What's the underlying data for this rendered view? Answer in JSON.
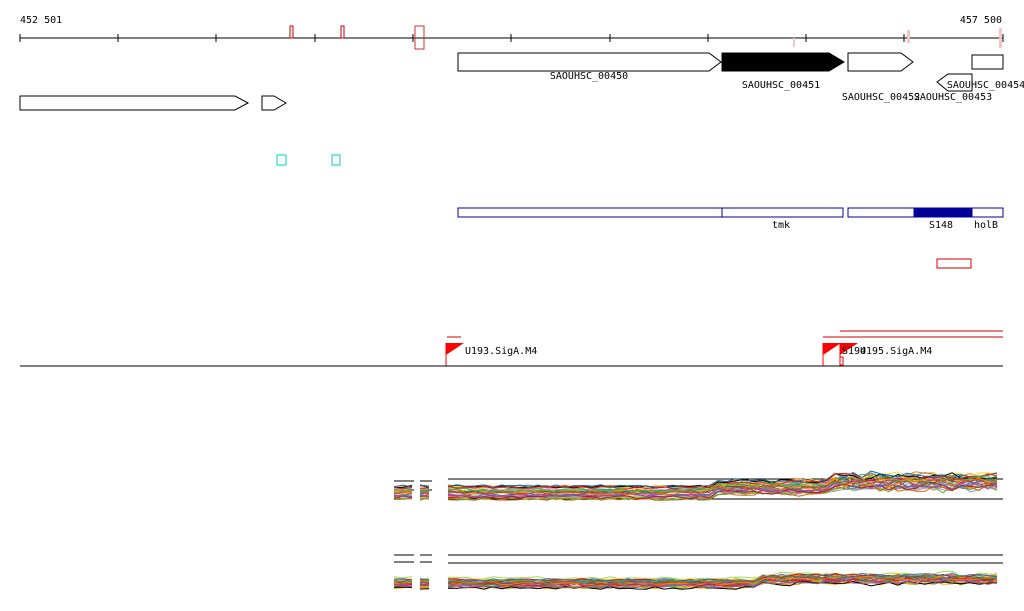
{
  "ruler": {
    "start_label": "452 501",
    "end_label": "457 500",
    "start": 452501,
    "end": 457500
  },
  "genes": [
    {
      "id": "SAOUHSC_00450",
      "label": "SAOUHSC_00450",
      "start": 454701,
      "end": 456037,
      "strand": "+",
      "filled": false
    },
    {
      "id": "SAOUHSC_00451",
      "label": "SAOUHSC_00451",
      "start": 456037,
      "end": 456671,
      "strand": "+",
      "filled": true
    },
    {
      "id": "SAOUHSC_00452",
      "label": "SAOUHSC_00452",
      "start": 456671,
      "end": 457006,
      "strand": "+",
      "filled": false
    },
    {
      "id": "SAOUHSC_00453",
      "label": "SAOUHSC_00453",
      "start": 457138,
      "end": 457316,
      "strand": "-",
      "filled": false
    },
    {
      "id": "SAOUHSC_00454",
      "label": "SAOUHSC_00454",
      "start": 457331,
      "end": 457500,
      "strand": "-",
      "filled": false
    },
    {
      "id": "gene-left-1",
      "label": "",
      "start": 452501,
      "end": 453661,
      "strand": "+",
      "filled": false
    },
    {
      "id": "gene-left-2",
      "label": "",
      "start": 453712,
      "end": 453834,
      "strand": "+",
      "filled": false
    }
  ],
  "features": [
    {
      "id": "feat-large",
      "label": "",
      "start": 454701,
      "end": 456037,
      "filled": false
    },
    {
      "id": "feat-tmk",
      "label": "tmk",
      "start": 456037,
      "end": 456656,
      "filled": false
    },
    {
      "id": "feat-right",
      "label": "",
      "start": 456671,
      "end": 457006,
      "filled": false
    },
    {
      "id": "feat-S148",
      "label": "S148",
      "start": 457006,
      "end": 457306,
      "filled": true
    },
    {
      "id": "feat-holB",
      "label": "holB",
      "start": 457306,
      "end": 457465,
      "filled": false
    }
  ],
  "promoters": [
    {
      "label": "U193.SigA.M4"
    },
    {
      "label": "S194"
    },
    {
      "label": "U195.SigA.M4"
    }
  ],
  "colors": {
    "gene_fill": "#000000",
    "feature_border": "#000099",
    "feature_fill": "#000099",
    "marker_red": "#cc0000",
    "marker_cyan": "#00cccc",
    "promoter_red": "#ff0000"
  }
}
